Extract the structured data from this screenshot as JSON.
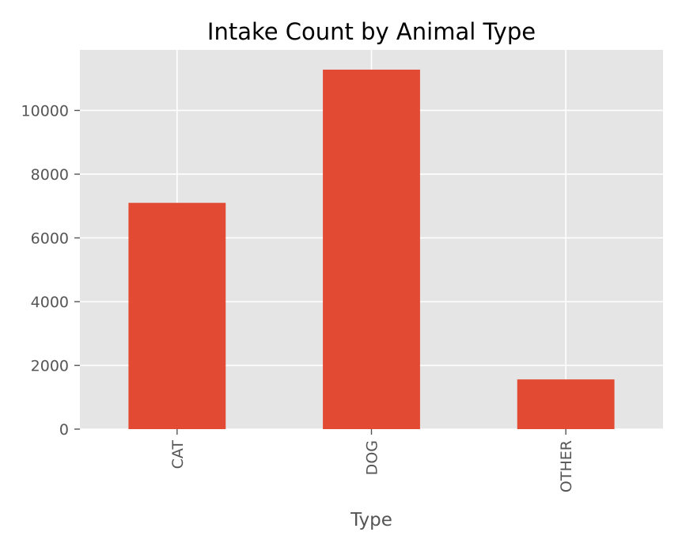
{
  "chart_data": {
    "type": "bar",
    "title": "Intake Count by Animal Type",
    "xlabel": "Type",
    "ylabel": "",
    "categories": [
      "CAT",
      "DOG",
      "OTHER"
    ],
    "values": [
      7100,
      11280,
      1560
    ],
    "ylim": [
      0,
      11900
    ],
    "yticks": [
      0,
      2000,
      4000,
      6000,
      8000,
      10000
    ],
    "ytick_labels": [
      "0",
      "2000",
      "4000",
      "6000",
      "8000",
      "10000"
    ],
    "grid": true,
    "legend": "none",
    "colors": {
      "bar": "#E24A33",
      "plot_background": "#E5E5E5",
      "grid": "#FFFFFF",
      "text": "#555555",
      "title": "#000000"
    }
  }
}
